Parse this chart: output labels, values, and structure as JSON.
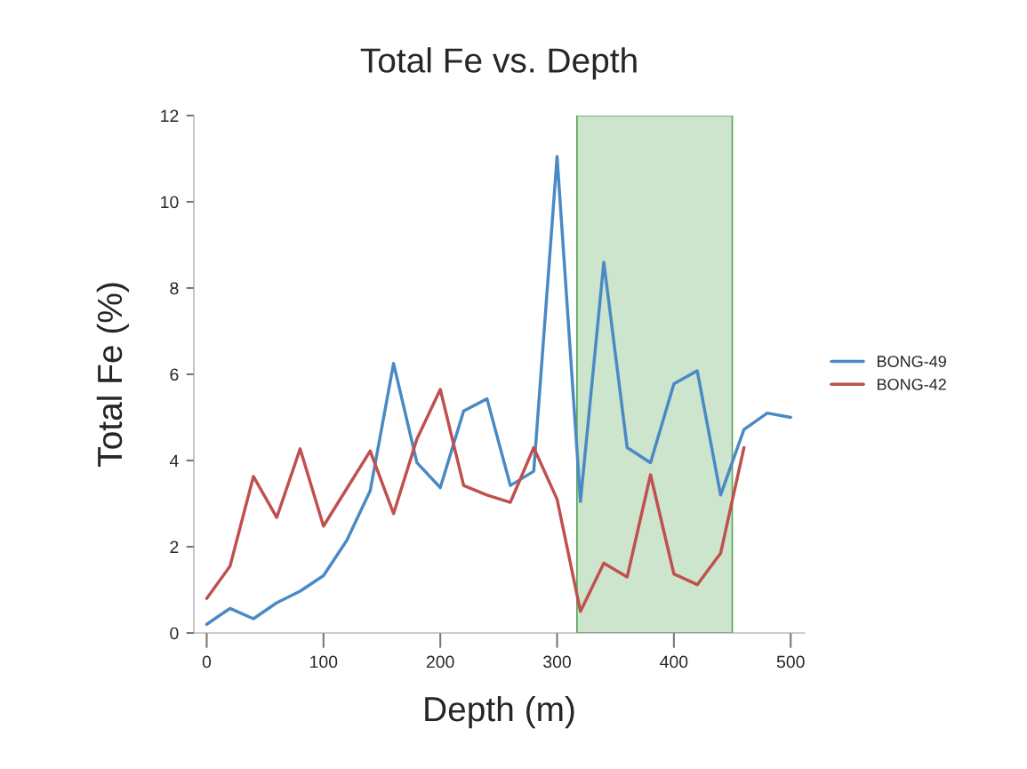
{
  "chart_data": {
    "type": "line",
    "title": "Total Fe vs. Depth",
    "xlabel": "Depth (m)",
    "ylabel": "Total Fe (%)",
    "x": [
      0,
      20,
      40,
      60,
      80,
      100,
      120,
      140,
      160,
      180,
      200,
      220,
      240,
      260,
      280,
      300,
      320,
      340,
      360,
      380,
      400,
      420,
      440,
      460,
      480,
      500
    ],
    "series": [
      {
        "name": "BONG-49",
        "color": "#4a8ac4",
        "values": [
          0.2,
          0.57,
          0.33,
          0.7,
          0.97,
          1.33,
          2.15,
          3.3,
          6.25,
          3.95,
          3.37,
          5.15,
          5.43,
          3.42,
          3.75,
          11.05,
          3.05,
          8.6,
          4.3,
          3.95,
          5.78,
          6.08,
          3.2,
          4.72,
          5.1,
          5.0
        ]
      },
      {
        "name": "BONG-42",
        "color": "#c0504d",
        "values": [
          0.8,
          1.55,
          3.63,
          2.68,
          4.27,
          2.48,
          3.35,
          4.22,
          2.77,
          4.5,
          5.65,
          3.42,
          3.2,
          3.03,
          4.3,
          3.1,
          0.5,
          1.62,
          1.3,
          3.67,
          1.37,
          1.12,
          1.85,
          4.3,
          null,
          null
        ]
      }
    ],
    "xlim": [
      -11,
      512
    ],
    "xticks": [
      0,
      100,
      200,
      300,
      400,
      500
    ],
    "ylim": [
      0,
      12
    ],
    "yticks": [
      0,
      2,
      4,
      6,
      8,
      10,
      12
    ],
    "bands": [
      {
        "axis": "x",
        "from": 317,
        "to": 450,
        "color": "#5aa65a"
      }
    ],
    "legend": "right",
    "grid": false,
    "marker": "none",
    "line_style": "solid"
  }
}
